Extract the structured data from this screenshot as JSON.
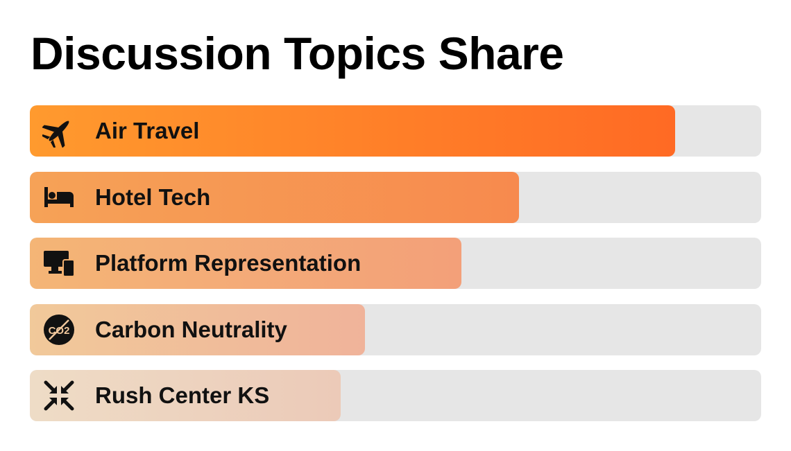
{
  "chart_data": {
    "type": "bar",
    "orientation": "horizontal",
    "title": "Discussion Topics Share",
    "categories": [
      "Air Travel",
      "Hotel Tech",
      "Platform Representation",
      "Carbon Neutrality",
      "Rush Center KS"
    ],
    "values": [
      88.2,
      66.9,
      59.0,
      45.8,
      42.5
    ],
    "xlim": [
      0,
      100
    ],
    "grid": false,
    "legend": "none",
    "icons": [
      "airplane-icon",
      "bed-icon",
      "devices-icon",
      "co2-icon",
      "compress-arrows-icon"
    ],
    "colors": {
      "track": "#e6e6e6",
      "gradients": [
        [
          "#ff9a2e",
          "#ff6a24"
        ],
        [
          "#f6a257",
          "#f78a4e"
        ],
        [
          "#f4b576",
          "#f3a079"
        ],
        [
          "#f1c99a",
          "#f0b39a"
        ],
        [
          "#eedcc6",
          "#eccab8"
        ]
      ]
    }
  }
}
